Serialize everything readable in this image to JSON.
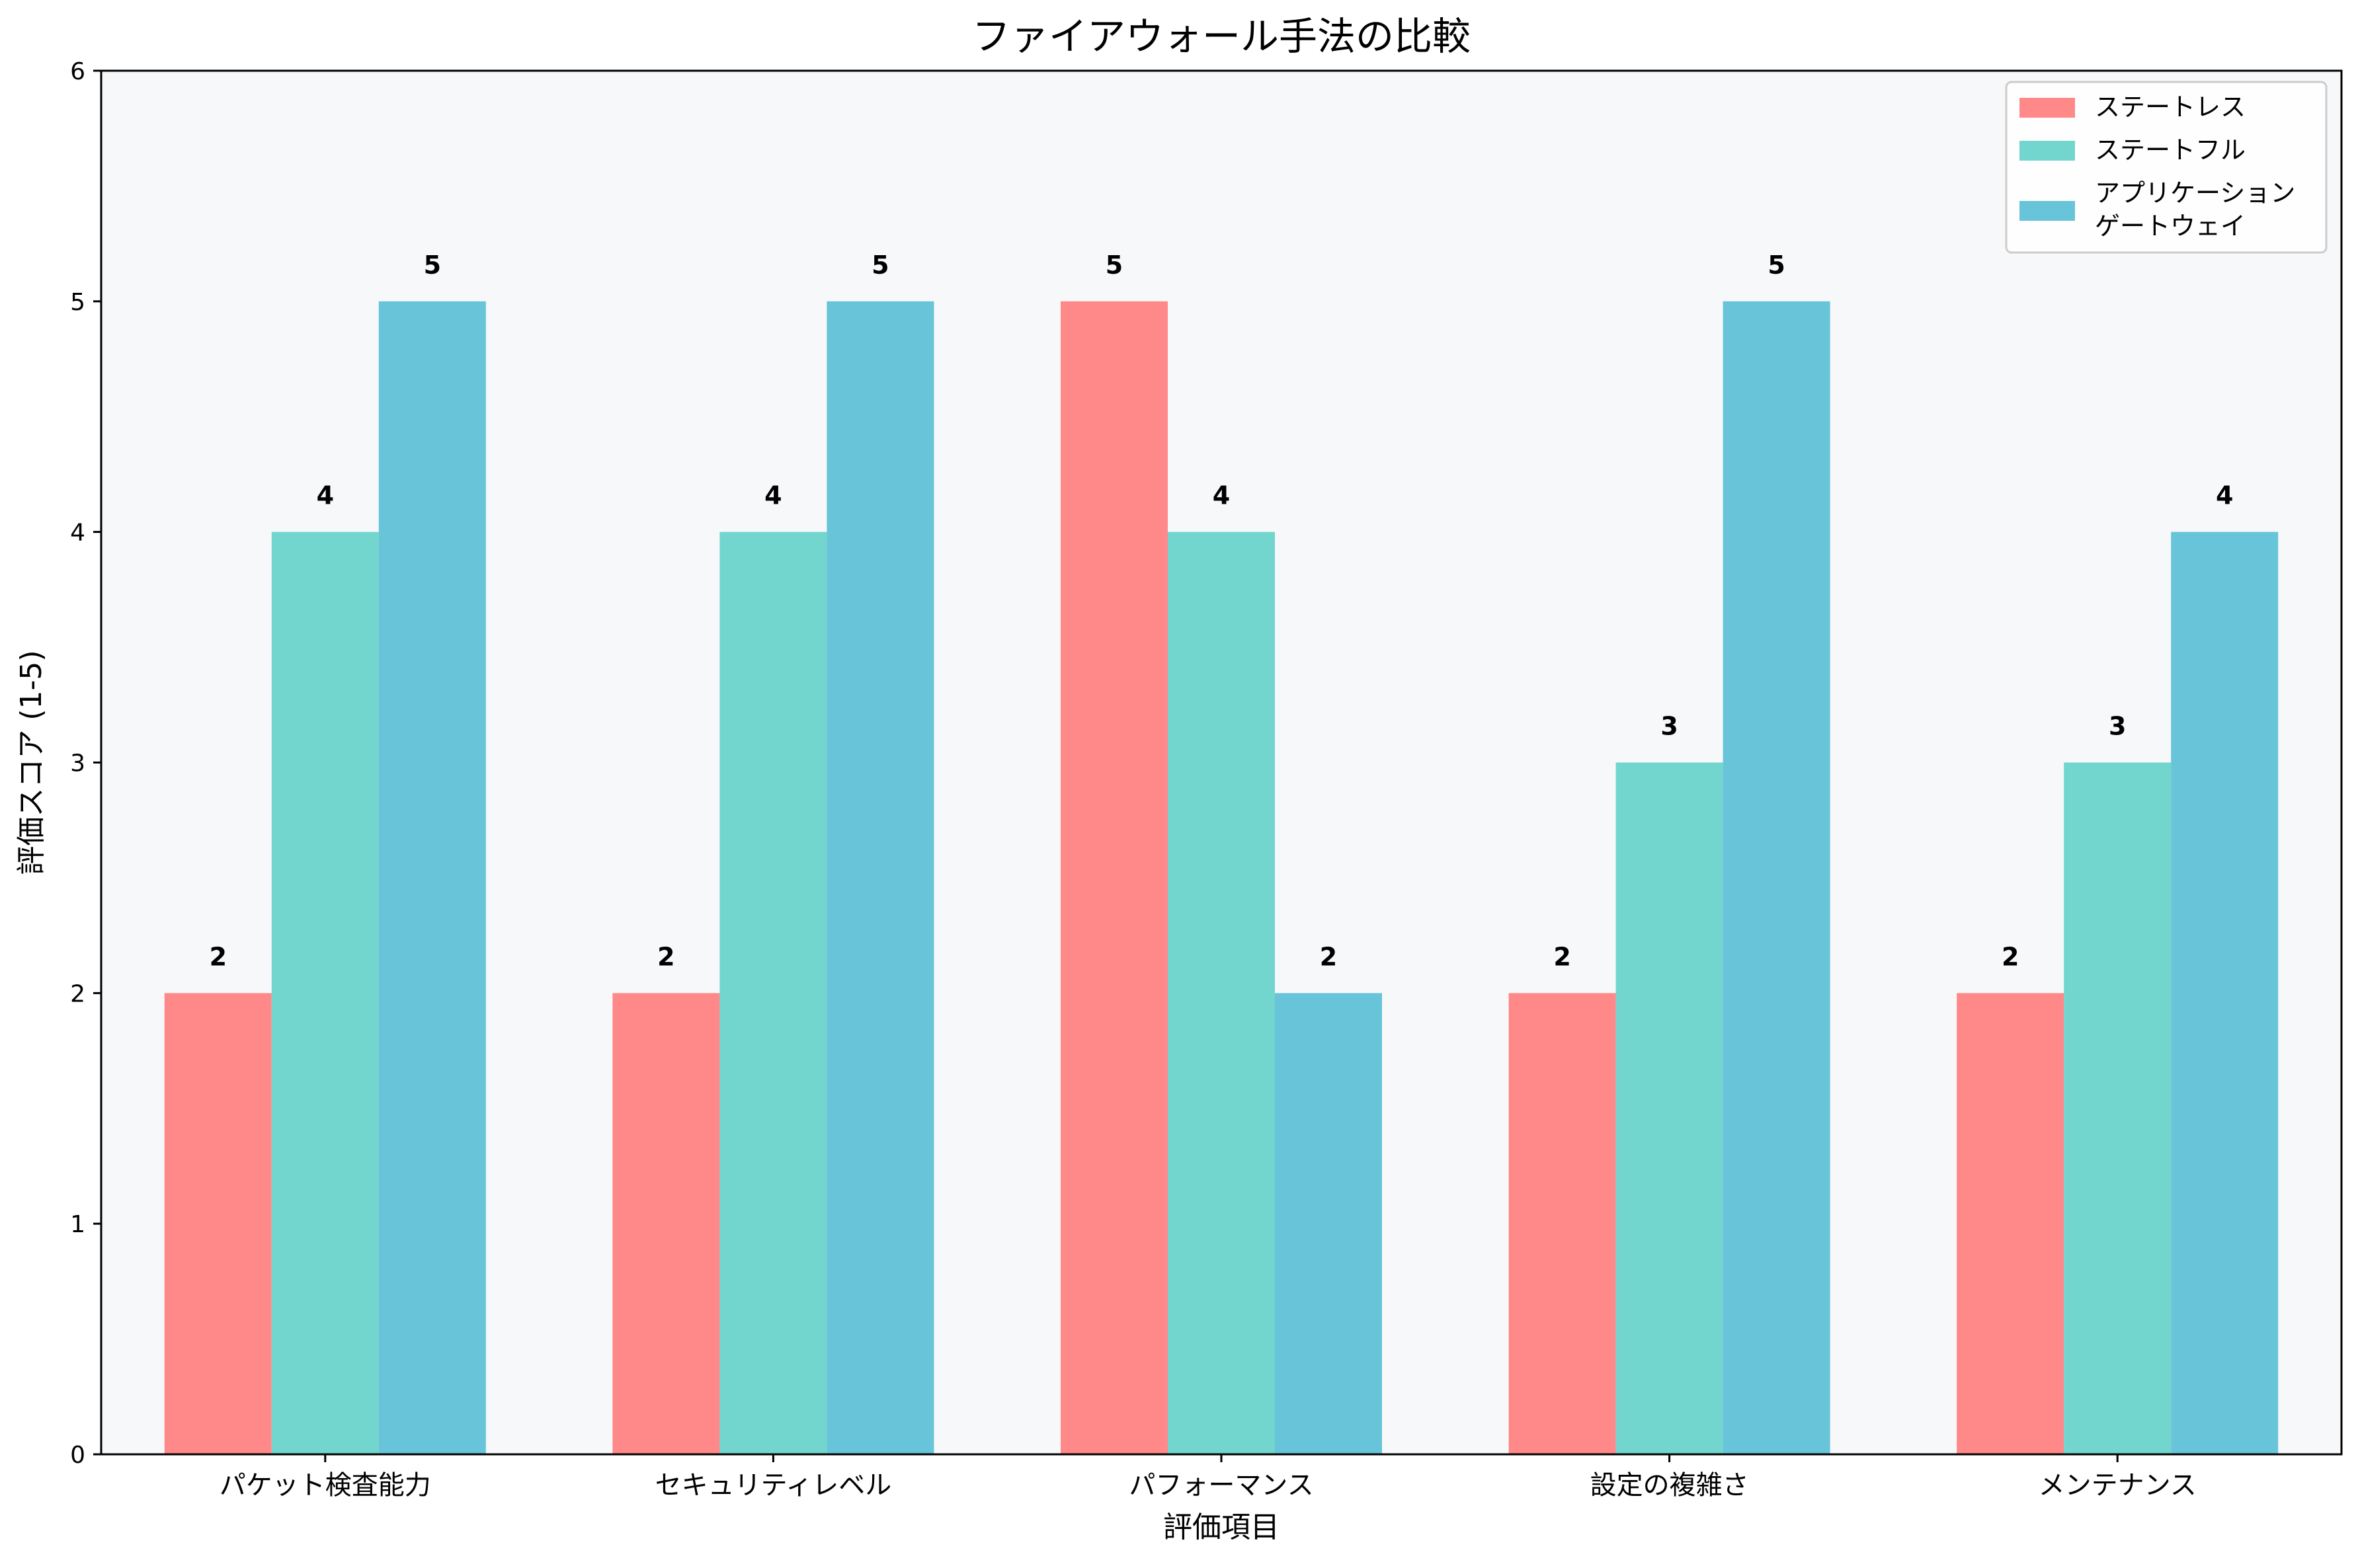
{
  "chart_data": {
    "type": "bar",
    "title": "ファイアウォール手法の比較",
    "xlabel": "評価項目",
    "ylabel": "評価スコア (1-5)",
    "ylim": [
      0,
      6
    ],
    "yticks": [
      "0",
      "1",
      "2",
      "3",
      "4",
      "5",
      "6"
    ],
    "categories": [
      "パケット検査能力",
      "セキュリティレベル",
      "パフォーマンス",
      "設定の複雑さ",
      "メンテナンス"
    ],
    "series": [
      {
        "name": "ステートレス",
        "color": "#ff8888",
        "values": [
          2,
          2,
          5,
          2,
          2
        ]
      },
      {
        "name": "ステートフル",
        "color": "#72d5ce",
        "values": [
          4,
          4,
          4,
          3,
          3
        ]
      },
      {
        "name": "アプリケーション\nゲートウェイ",
        "color": "#68c4d8",
        "values": [
          5,
          5,
          2,
          5,
          4
        ]
      }
    ],
    "plot_background": "#f7f8fa",
    "grid": false,
    "legend_position": "top-right"
  }
}
